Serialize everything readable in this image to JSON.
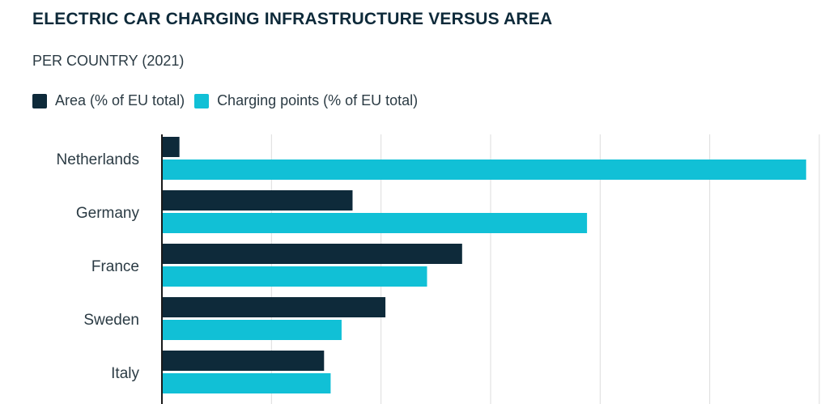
{
  "chart_data": {
    "type": "bar",
    "orientation": "horizontal",
    "title": "ELECTRIC CAR CHARGING INFRASTRUCTURE VERSUS AREA",
    "subtitle": "PER COUNTRY (2021)",
    "categories": [
      "Netherlands",
      "Germany",
      "France",
      "Sweden",
      "Italy"
    ],
    "series": [
      {
        "name": "Area (% of EU total)",
        "color": "#0e2a3a",
        "values": [
          0.8,
          8.7,
          13.7,
          10.2,
          7.4
        ]
      },
      {
        "name": "Charging points (% of EU total)",
        "color": "#11c0d6",
        "values": [
          29.4,
          19.4,
          12.1,
          8.2,
          7.7
        ]
      }
    ],
    "xlim": [
      0,
      30
    ],
    "grid": true,
    "legend": "top-left"
  }
}
